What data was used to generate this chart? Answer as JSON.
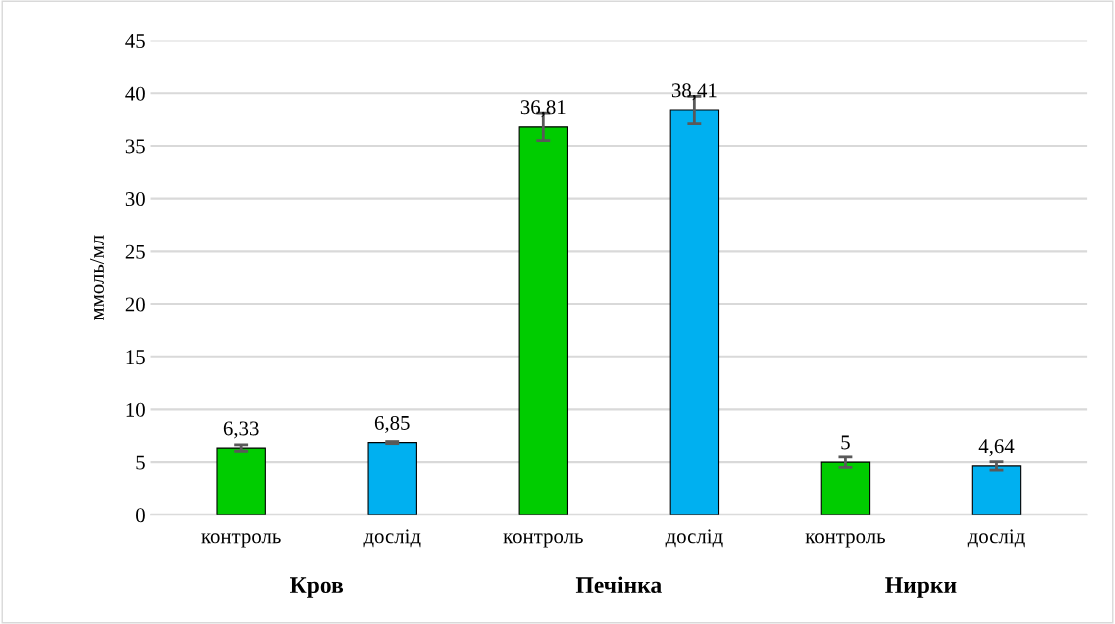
{
  "chart_data": {
    "type": "bar",
    "ylabel": "ммоль/мл",
    "categories": [
      "контроль",
      "дослід",
      "контроль",
      "дослід",
      "контроль",
      "дослід"
    ],
    "values": [
      6.33,
      6.85,
      36.81,
      38.41,
      5,
      4.64
    ],
    "colors": [
      "#00cc00",
      "#00b0f0",
      "#00cc00",
      "#00b0f0",
      "#00cc00",
      "#00b0f0"
    ],
    "errors": [
      0.3,
      0.1,
      1.3,
      1.3,
      0.5,
      0.4
    ],
    "value_labels": [
      "6,33",
      "6,85",
      "36,81",
      "38,41",
      "5",
      "4,64"
    ],
    "ylim": [
      0,
      45
    ],
    "yticks": [
      0,
      5,
      10,
      15,
      20,
      25,
      30,
      35,
      40,
      45
    ],
    "grid": "y",
    "annotations": [
      "Кров",
      "Печінка",
      "Нирки"
    ]
  }
}
